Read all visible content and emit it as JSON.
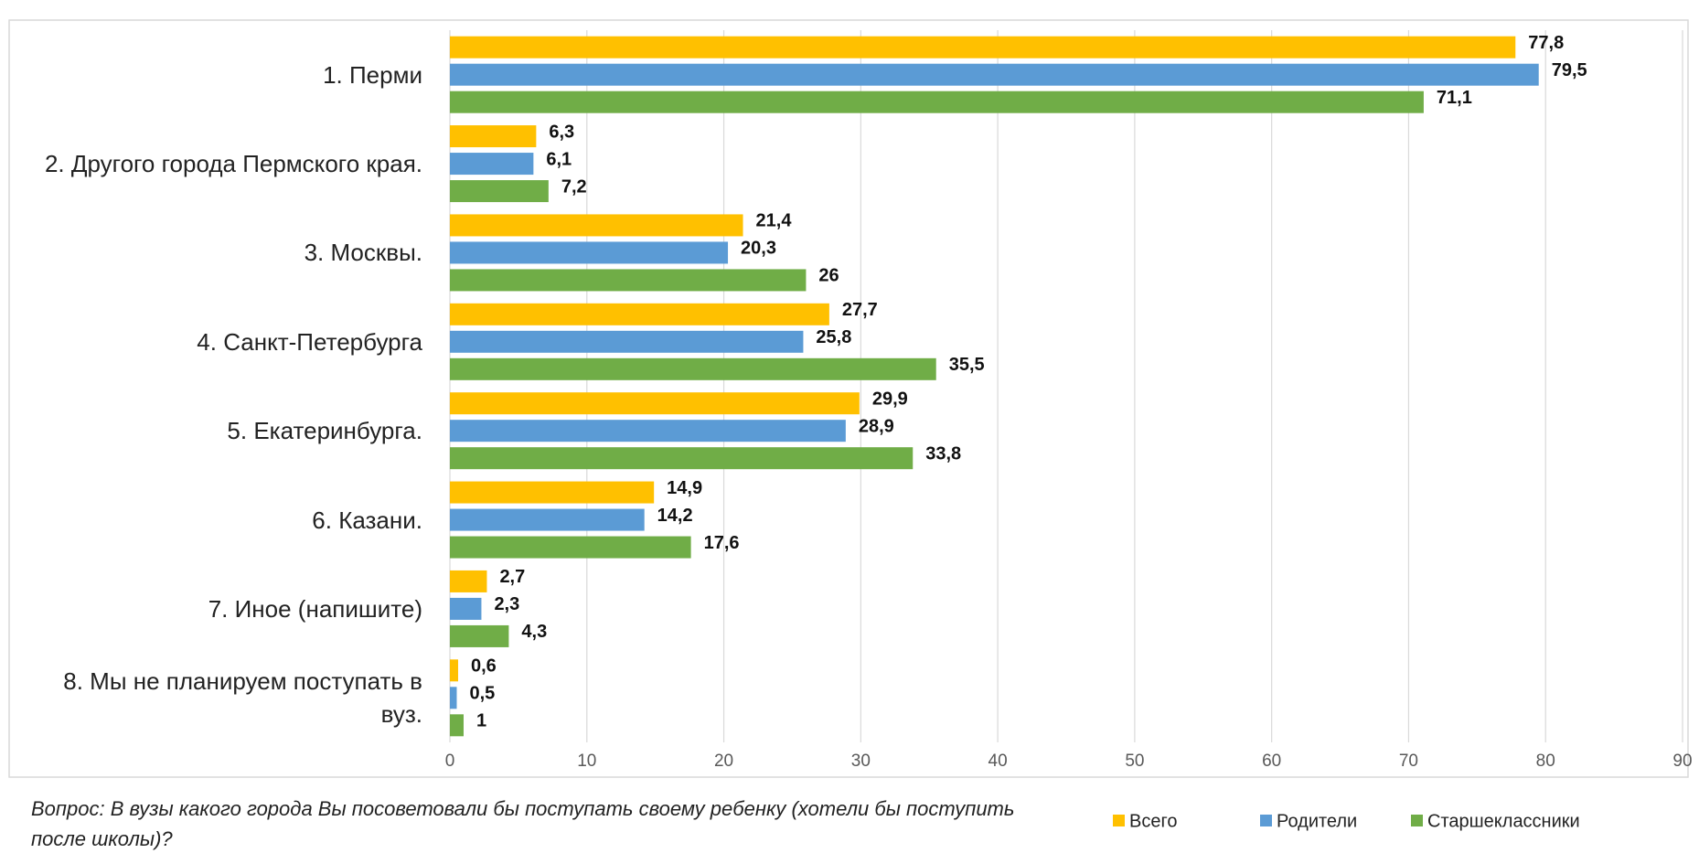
{
  "chart_data": {
    "type": "hbar",
    "categories": [
      "1. Перми",
      "2. Другого города Пермского края.",
      "3. Москвы.",
      "4. Санкт-Петербурга",
      "5. Екатеринбурга.",
      "6. Казани.",
      "7. Иное (напишите)",
      "8. Мы не планируем поступать в вуз."
    ],
    "series": [
      {
        "name": "Всего",
        "color": "#FFC000",
        "values": [
          77.8,
          6.3,
          21.4,
          27.7,
          29.9,
          14.9,
          2.7,
          0.6
        ],
        "value_labels": [
          "77,8",
          "6,3",
          "21,4",
          "27,7",
          "29,9",
          "14,9",
          "2,7",
          "0,6"
        ]
      },
      {
        "name": "Родители",
        "color": "#5B9BD5",
        "values": [
          79.5,
          6.1,
          20.3,
          25.8,
          28.9,
          14.2,
          2.3,
          0.5
        ],
        "value_labels": [
          "79,5",
          "6,1",
          "20,3",
          "25,8",
          "28,9",
          "14,2",
          "2,3",
          "0,5"
        ]
      },
      {
        "name": "Старшеклассники",
        "color": "#70AD47",
        "values": [
          71.1,
          7.2,
          26,
          35.5,
          33.8,
          17.6,
          4.3,
          1
        ],
        "value_labels": [
          "71,1",
          "7,2",
          "26",
          "35,5",
          "33,8",
          "17,6",
          "4,3",
          "1"
        ]
      }
    ],
    "xlim": [
      0,
      90
    ],
    "xticks": [
      0,
      10,
      20,
      30,
      40,
      50,
      60,
      70,
      80,
      90
    ],
    "grid": true,
    "legend": "bottom-right",
    "footnote": "Вопрос: В вузы какого города Вы посоветовали бы поступать своему ребенку (хотели бы поступить после школы)?"
  }
}
